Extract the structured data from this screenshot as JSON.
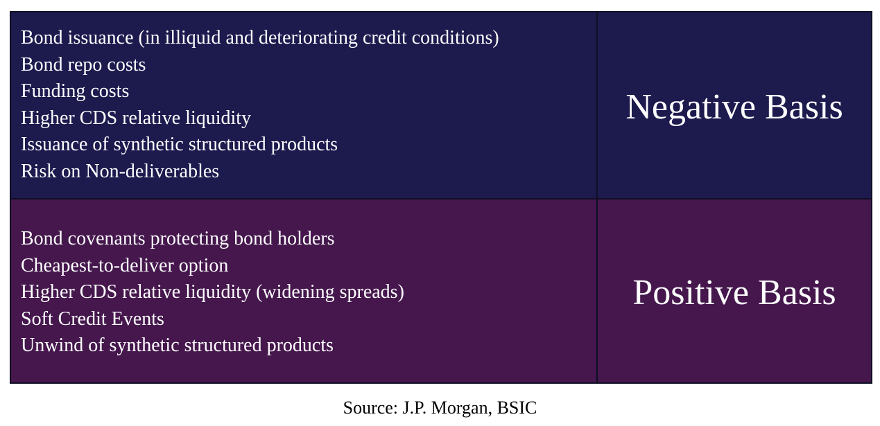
{
  "negative": {
    "label": "Negative Basis",
    "items": [
      "Bond issuance (in illiquid and deteriorating credit conditions)",
      "Bond repo costs",
      "Funding costs",
      "Higher CDS relative liquidity",
      "Issuance of synthetic structured products",
      "Risk on Non-deliverables"
    ],
    "background": "#1d1a4e"
  },
  "positive": {
    "label": "Positive Basis",
    "items": [
      "Bond covenants protecting bond holders",
      "Cheapest-to-deliver option",
      "Higher CDS relative liquidity (widening spreads)",
      "Soft Credit Events",
      "Unwind of synthetic structured products"
    ],
    "background": "#45174d"
  },
  "source": "Source: J.P. Morgan, BSIC"
}
